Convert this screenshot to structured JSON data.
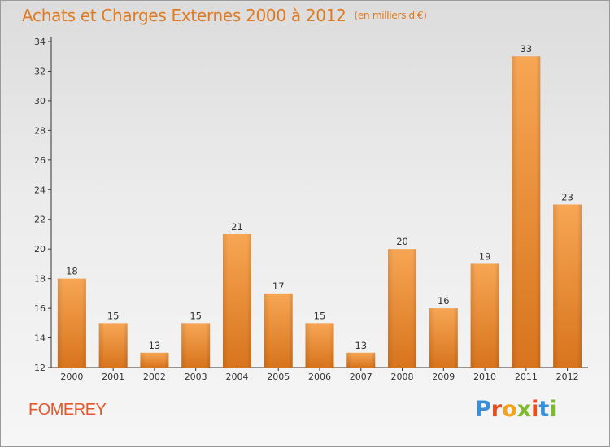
{
  "header": {
    "title": "Achats et Charges Externes 2000 à 2012",
    "subtitle": "(en milliers d'€)"
  },
  "footer": {
    "town": "FOMEREY",
    "logo_text": "Proxiti"
  },
  "colors": {
    "title": "#e07a20",
    "bar_light": "#f6a452",
    "bar_dark": "#d9761f",
    "town": "#e4572a"
  },
  "chart_data": {
    "type": "bar",
    "categories": [
      "2000",
      "2001",
      "2002",
      "2003",
      "2004",
      "2005",
      "2006",
      "2007",
      "2008",
      "2009",
      "2010",
      "2011",
      "2012"
    ],
    "values": [
      18,
      15,
      13,
      15,
      21,
      17,
      15,
      13,
      20,
      16,
      19,
      33,
      23
    ],
    "ylim": [
      12,
      34
    ],
    "yticks": [
      12,
      14,
      16,
      18,
      20,
      22,
      24,
      26,
      28,
      30,
      32,
      34
    ],
    "grid": false,
    "title": "Achats et Charges Externes 2000 à 2012",
    "ylabel": "(en milliers d'€)"
  }
}
